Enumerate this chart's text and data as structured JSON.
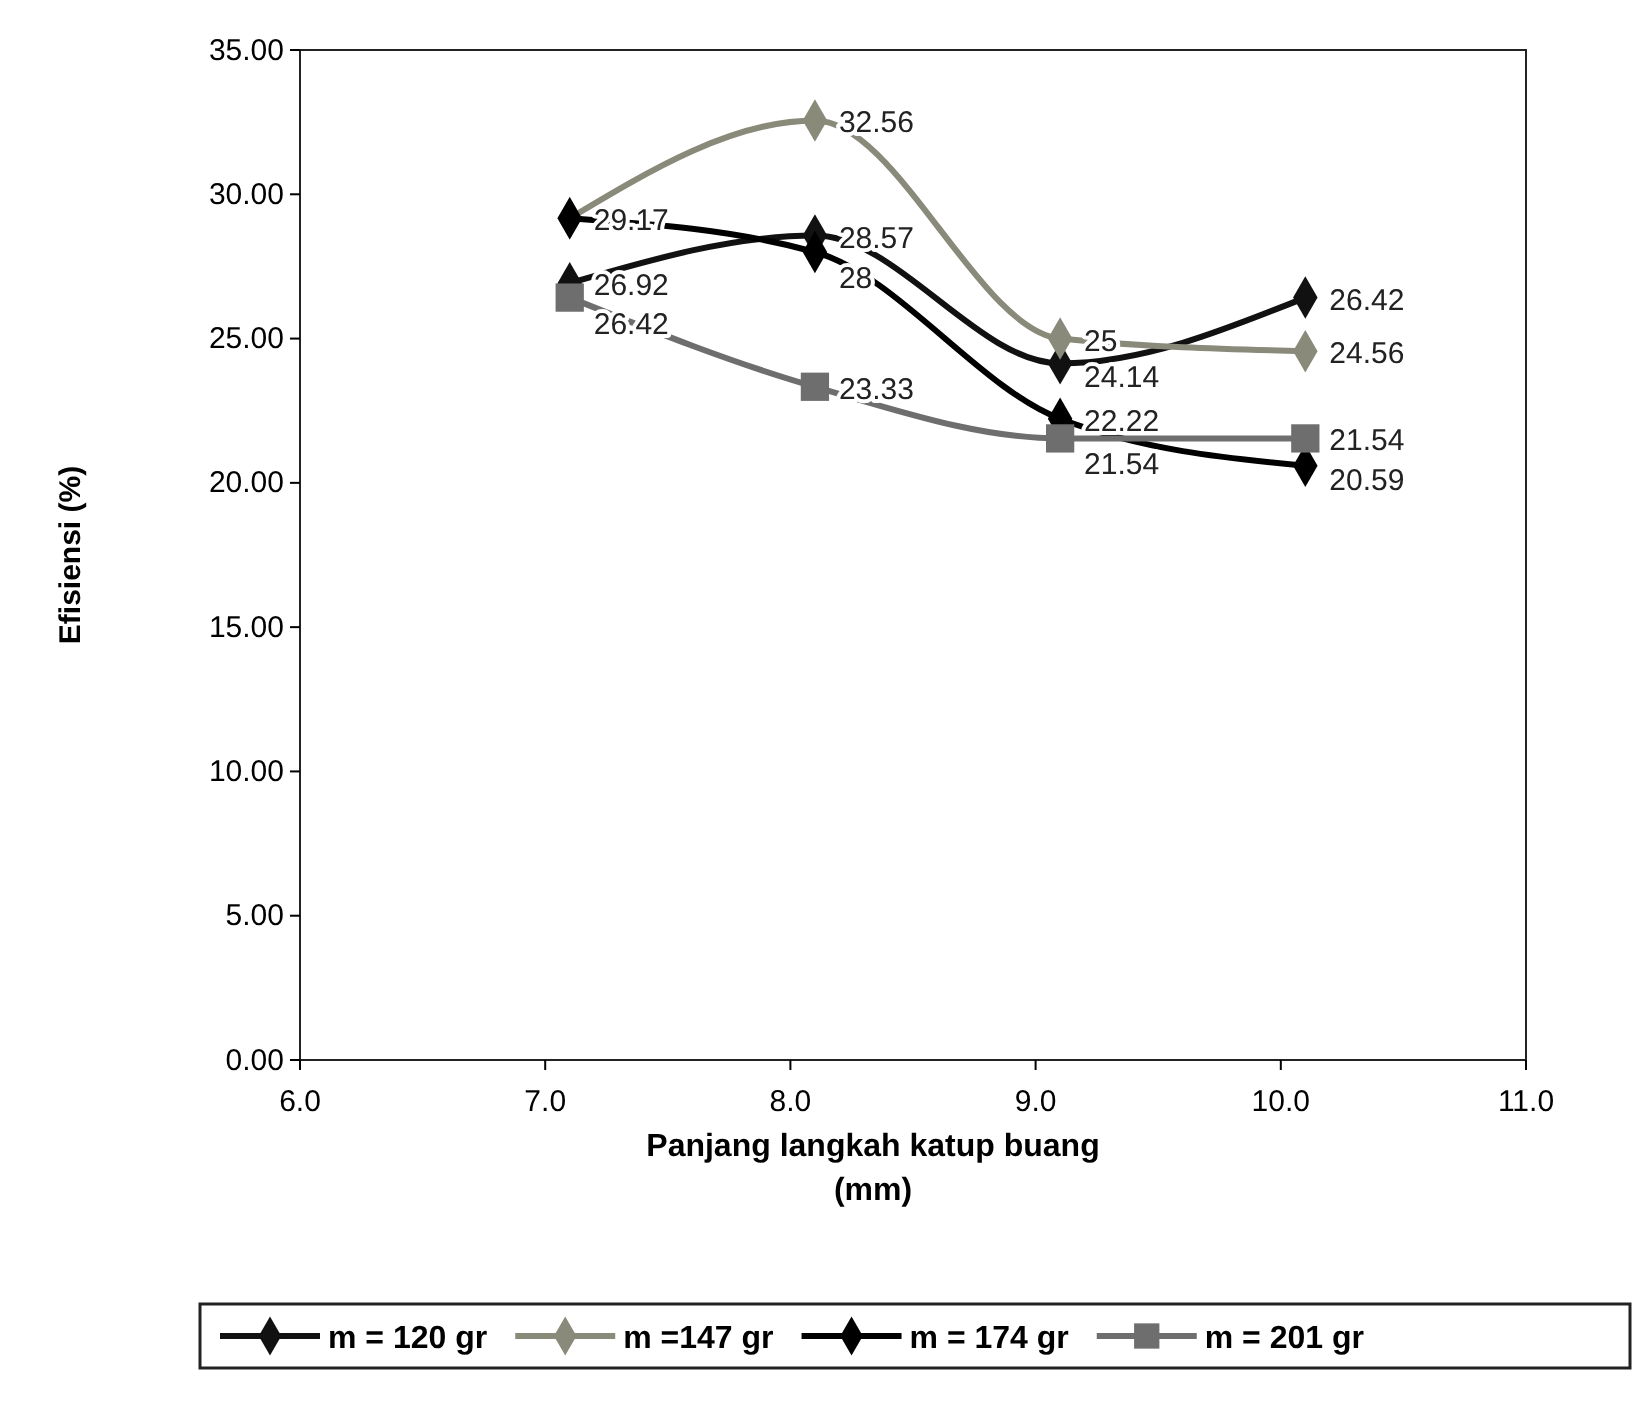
{
  "chart_data": {
    "type": "line",
    "xlabel": "Panjang langkah katup buang\n(mm)",
    "ylabel": "Efisiensi (%)",
    "x": [
      7.1,
      8.1,
      9.1,
      10.1
    ],
    "xlim": [
      6,
      11
    ],
    "xticks": [
      {
        "value": 6,
        "label": "6.0"
      },
      {
        "value": 7,
        "label": "7.0"
      },
      {
        "value": 8,
        "label": "8.0"
      },
      {
        "value": 9,
        "label": "9.0"
      },
      {
        "value": 10,
        "label": "10.0"
      },
      {
        "value": 11,
        "label": "11.0"
      }
    ],
    "ylim": [
      0,
      35
    ],
    "yticks": [
      {
        "value": 0,
        "label": "0.00"
      },
      {
        "value": 5,
        "label": "5.00"
      },
      {
        "value": 10,
        "label": "10.00"
      },
      {
        "value": 15,
        "label": "15.00"
      },
      {
        "value": 20,
        "label": "20.00"
      },
      {
        "value": 25,
        "label": "25.00"
      },
      {
        "value": 30,
        "label": "30.00"
      },
      {
        "value": 35,
        "label": "35.00"
      }
    ],
    "series": [
      {
        "name": "m = 120 gr",
        "color": "#111111",
        "marker": "diamond",
        "values": [
          26.92,
          28.57,
          24.14,
          26.42
        ],
        "value_labels": [
          "26.92",
          "28.57",
          "24.14",
          "26.42"
        ]
      },
      {
        "name": "m =147 gr",
        "color": "#8a8a7a",
        "marker": "diamond",
        "values": [
          29.17,
          32.56,
          25,
          24.56
        ],
        "value_labels": [
          "29.17",
          "32.56",
          "25",
          "24.56"
        ]
      },
      {
        "name": "m = 174 gr",
        "color": "#000000",
        "marker": "diamond",
        "values": [
          29.17,
          28,
          22.22,
          20.59
        ],
        "value_labels": [
          null,
          "28",
          "22.22",
          "20.59"
        ]
      },
      {
        "name": "m = 201 gr",
        "color": "#6e6e6e",
        "marker": "square",
        "values": [
          26.42,
          23.33,
          21.54,
          21.54
        ],
        "value_labels": [
          "26.42",
          "23.33",
          "21.54",
          "21.54"
        ]
      }
    ],
    "grid": false,
    "legend": "bottom"
  }
}
